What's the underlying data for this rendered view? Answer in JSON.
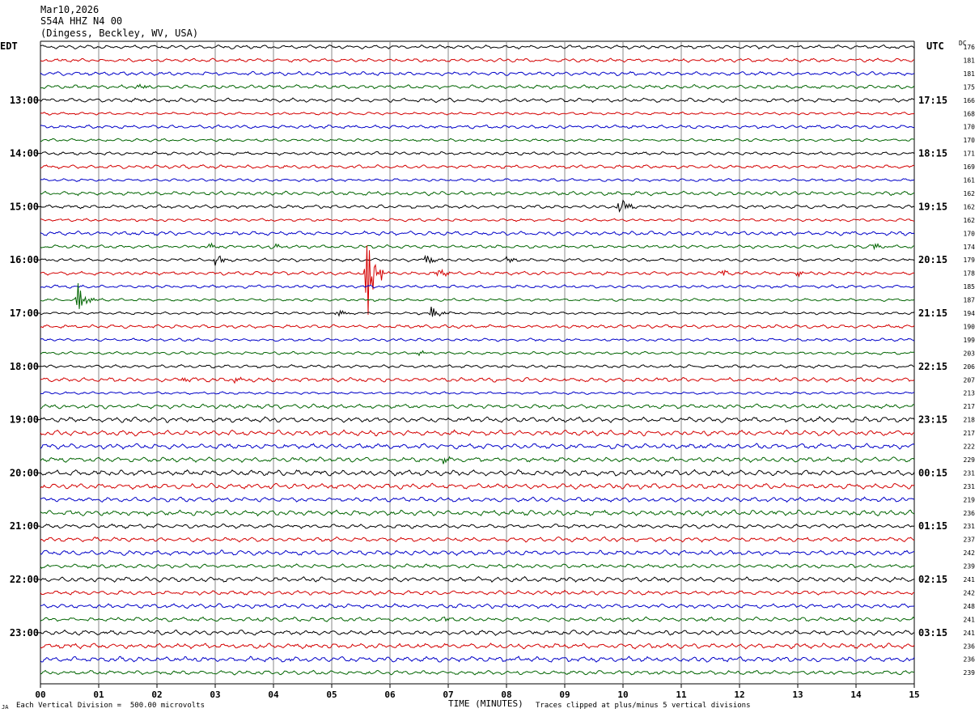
{
  "header": {
    "date": "Mar10,2026",
    "station": "S54A HHZ N4 00",
    "location": "(Dingess, Beckley, WV, USA)"
  },
  "left_zone": "EDT",
  "right_zone": "UTC",
  "dc_label": "DC",
  "footer": {
    "scale": "Each Vertical Division =  500.00 microvolts",
    "clip": "Traces clipped at plus/minus 5 vertical divisions",
    "corner": "JA"
  },
  "colors": {
    "trace": [
      "#000000",
      "#d40000",
      "#0000c8",
      "#006400"
    ],
    "grid": "#888888"
  },
  "chart_data": {
    "type": "line",
    "title": "S54A HHZ N4 00",
    "xlabel": "TIME (MINUTES)",
    "x_ticks": [
      "00",
      "01",
      "02",
      "03",
      "04",
      "05",
      "06",
      "07",
      "08",
      "09",
      "10",
      "11",
      "12",
      "13",
      "14",
      "15"
    ],
    "x_range": [
      0,
      15
    ],
    "left_hour_labels": [
      "13:00",
      "14:00",
      "15:00",
      "16:00",
      "17:00",
      "18:00",
      "19:00",
      "20:00",
      "21:00",
      "22:00",
      "23:00"
    ],
    "right_hour_labels": [
      "17:15",
      "18:15",
      "19:15",
      "20:15",
      "21:15",
      "22:15",
      "23:15",
      "00:15",
      "01:15",
      "02:15",
      "03:15"
    ],
    "dc_offsets": [
      176,
      181,
      181,
      175,
      166,
      168,
      170,
      170,
      171,
      169,
      161,
      162,
      162,
      162,
      170,
      174,
      179,
      178,
      185,
      187,
      194,
      190,
      199,
      203,
      206,
      207,
      213,
      217,
      218,
      217,
      222,
      229,
      231,
      231,
      219,
      236,
      231,
      237,
      242,
      239,
      241,
      242,
      248,
      241,
      241,
      236,
      236,
      239
    ],
    "events": [
      {
        "row": 3,
        "minute": 1.65,
        "amp": 0.4
      },
      {
        "row": 12,
        "minute": 9.93,
        "amp": 1.2
      },
      {
        "row": 15,
        "minute": 2.8,
        "amp": 0.6
      },
      {
        "row": 15,
        "minute": 3.95,
        "amp": 0.3
      },
      {
        "row": 15,
        "minute": 14.25,
        "amp": 0.4
      },
      {
        "row": 16,
        "minute": 3.0,
        "amp": 0.6
      },
      {
        "row": 16,
        "minute": 6.6,
        "amp": 0.8
      },
      {
        "row": 16,
        "minute": 8.0,
        "amp": 0.35
      },
      {
        "row": 17,
        "minute": 5.58,
        "amp": 5.0
      },
      {
        "row": 17,
        "minute": 6.8,
        "amp": 0.5
      },
      {
        "row": 17,
        "minute": 11.7,
        "amp": 0.3
      },
      {
        "row": 17,
        "minute": 13.0,
        "amp": 0.3
      },
      {
        "row": 19,
        "minute": 0.63,
        "amp": 1.6
      },
      {
        "row": 20,
        "minute": 5.08,
        "amp": 0.4
      },
      {
        "row": 20,
        "minute": 6.7,
        "amp": 0.8
      },
      {
        "row": 23,
        "minute": 6.45,
        "amp": 0.3
      },
      {
        "row": 25,
        "minute": 2.4,
        "amp": 0.3
      },
      {
        "row": 25,
        "minute": 3.3,
        "amp": 0.3
      },
      {
        "row": 31,
        "minute": 6.9,
        "amp": 0.3
      },
      {
        "row": 43,
        "minute": 6.9,
        "amp": 0.25
      }
    ]
  }
}
